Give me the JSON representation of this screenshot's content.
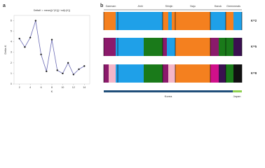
{
  "chart_data": {
    "type": "line",
    "panel_label": "a",
    "title": "DeltaK = mean(|L''(K)|) / sd(L(K))",
    "x_label": "K",
    "y_label": "Delta K",
    "x": [
      2,
      3,
      4,
      5,
      6,
      7,
      8,
      9,
      10,
      11,
      12,
      13,
      14
    ],
    "series": [
      {
        "name": "Delta K",
        "color": "#6b6bb5",
        "values": [
          4.3,
          3.5,
          4.4,
          6.0,
          2.8,
          1.2,
          4.2,
          1.3,
          1.0,
          2.0,
          0.9,
          1.4,
          1.7
        ]
      }
    ],
    "xlim": [
      1,
      15
    ],
    "xticks": [
      2,
      4,
      6,
      8,
      10,
      12,
      14
    ],
    "ylim": [
      0,
      6.5
    ],
    "yticks": [
      0,
      1,
      2,
      3,
      4,
      5,
      6
    ],
    "grid": false
  },
  "structure_panel": {
    "panel_label": "b",
    "groups": [
      "Gaemam",
      "Jinhi",
      "Shinjin",
      "Naju",
      "Hanok",
      "Greenmeats"
    ],
    "rows": [
      "K=2",
      "K=5",
      "K=8"
    ],
    "regions": [
      "Korea",
      "Japan"
    ]
  }
}
